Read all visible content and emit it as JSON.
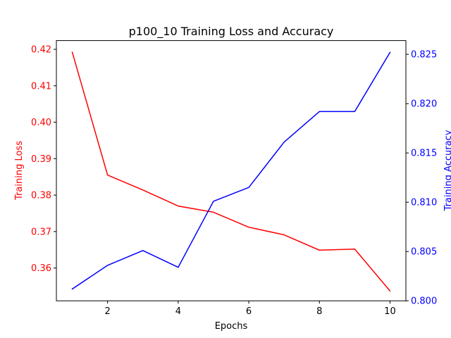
{
  "chart_data": {
    "type": "line",
    "title": "p100_10 Training Loss and Accuracy",
    "xlabel": "Epochs",
    "x": [
      1,
      2,
      3,
      4,
      5,
      6,
      7,
      8,
      9,
      10
    ],
    "xlim": [
      0.55,
      10.45
    ],
    "xticks": [
      2,
      4,
      6,
      8,
      10
    ],
    "left_axis": {
      "label": "Training Loss",
      "color": "#ff0000",
      "ylim": [
        0.351,
        0.4224
      ],
      "ticks": [
        "0.36",
        "0.37",
        "0.38",
        "0.39",
        "0.40",
        "0.41",
        "0.42"
      ]
    },
    "right_axis": {
      "label": "Training Accuracy",
      "color": "#0000ff",
      "ylim": [
        0.8,
        0.8264
      ],
      "ticks": [
        "0.800",
        "0.805",
        "0.810",
        "0.815",
        "0.820",
        "0.825"
      ]
    },
    "series": [
      {
        "axis": "left",
        "color": "#ff0000",
        "values": [
          0.4192,
          0.3855,
          0.3814,
          0.377,
          0.3753,
          0.3712,
          0.3691,
          0.3649,
          0.3652,
          0.3537
        ]
      },
      {
        "axis": "right",
        "color": "#0000ff",
        "values": [
          0.8012,
          0.8036,
          0.8051,
          0.8034,
          0.8101,
          0.8115,
          0.8161,
          0.8192,
          0.8192,
          0.8252
        ]
      }
    ],
    "grid": false
  }
}
